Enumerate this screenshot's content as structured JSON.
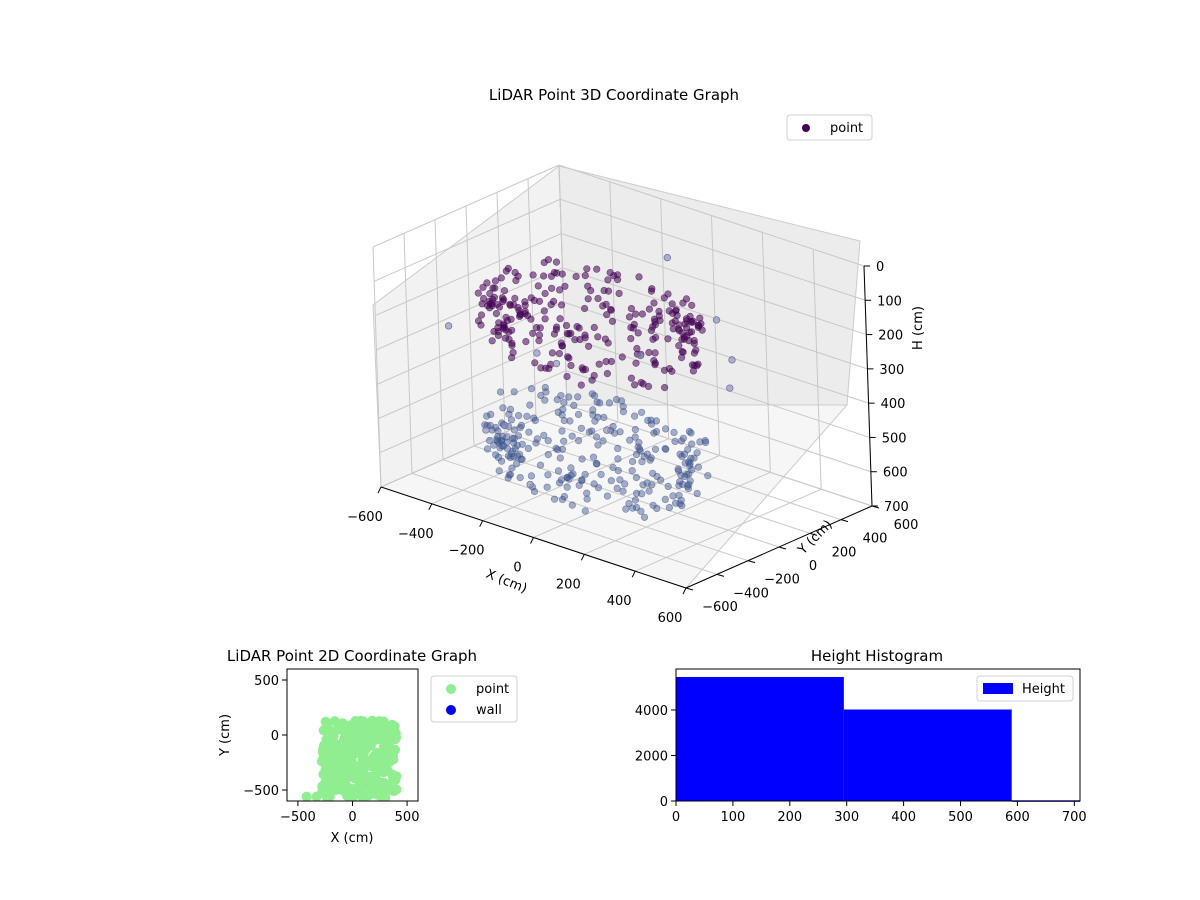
{
  "colors": {
    "point_3d": "#440154",
    "point_3d_low": "#3b528b",
    "point_2d": "#90ee90",
    "wall_2d": "#0000ee",
    "hist_bar": "#0000ff"
  },
  "chart_data": [
    {
      "type": "scatter3d",
      "title": "LiDAR Point 3D Coordinate Graph",
      "xlabel": "X (cm)",
      "ylabel": "Y (cm)",
      "zlabel": "H (cm)",
      "xlim": [
        -600,
        600
      ],
      "ylim": [
        -600,
        600
      ],
      "zlim": [
        0,
        700
      ],
      "z_inverted": true,
      "x_ticks": [
        -600,
        -400,
        -200,
        0,
        200,
        400,
        600
      ],
      "x_tick_labels": [
        "−600",
        "−400",
        "−200",
        "0",
        "200",
        "400",
        "600"
      ],
      "y_ticks": [
        -600,
        -400,
        -200,
        0,
        200,
        400,
        600
      ],
      "y_tick_labels": [
        "−600",
        "−400",
        "−200",
        "0",
        "200",
        "400",
        "600"
      ],
      "z_ticks": [
        0,
        100,
        200,
        300,
        400,
        500,
        600,
        700
      ],
      "z_tick_labels": [
        "0",
        "100",
        "200",
        "300",
        "400",
        "500",
        "600",
        "700"
      ],
      "legend": {
        "position": "top-right",
        "entries": [
          "point"
        ]
      },
      "series": [
        {
          "name": "point",
          "ring_upper": {
            "height": 150,
            "x_range": [
              -380,
              420
            ],
            "y_range": [
              -560,
              120
            ]
          },
          "ring_lower": {
            "height": 520,
            "x_range": [
              -380,
              420
            ],
            "y_range": [
              -560,
              120
            ]
          },
          "outliers": [
            [
              -560,
              -200,
              300
            ],
            [
              -600,
              200,
              680
            ],
            [
              -480,
              350,
              500
            ],
            [
              -300,
              -400,
              500
            ],
            [
              -400,
              100,
              400
            ],
            [
              -150,
              550,
              150
            ],
            [
              100,
              450,
              250
            ],
            [
              250,
              300,
              300
            ],
            [
              300,
              200,
              350
            ],
            [
              -100,
              -450,
              600
            ],
            [
              200,
              -200,
              200
            ],
            [
              150,
              -350,
              400
            ]
          ]
        }
      ]
    },
    {
      "type": "scatter",
      "title": "LiDAR Point 2D Coordinate Graph",
      "xlabel": "X (cm)",
      "ylabel": "Y (cm)",
      "xlim": [
        -600,
        600
      ],
      "ylim": [
        -600,
        600
      ],
      "x_ticks": [
        -500,
        0,
        500
      ],
      "x_tick_labels": [
        "−500",
        "0",
        "500"
      ],
      "y_ticks": [
        -500,
        0,
        500
      ],
      "y_tick_labels": [
        "−500",
        "0",
        "500"
      ],
      "legend": {
        "position": "outside-right",
        "entries": [
          "point",
          "wall"
        ]
      },
      "series": [
        {
          "name": "point",
          "shape": "blob",
          "x_range": [
            -420,
            430
          ],
          "y_range": [
            -580,
            130
          ]
        },
        {
          "name": "wall",
          "points": []
        }
      ]
    },
    {
      "type": "bar",
      "title": "Height Histogram",
      "xlim": [
        0,
        710
      ],
      "ylim": [
        0,
        5800
      ],
      "x_ticks": [
        0,
        100,
        200,
        300,
        400,
        500,
        600,
        700
      ],
      "y_ticks": [
        0,
        2000,
        4000
      ],
      "legend": {
        "position": "top-right",
        "entries": [
          "Height"
        ]
      },
      "series": [
        {
          "name": "Height",
          "bins": [
            {
              "start": 0,
              "end": 295,
              "count": 5450
            },
            {
              "start": 295,
              "end": 590,
              "count": 4020
            },
            {
              "start": 590,
              "end": 710,
              "count": 30
            }
          ]
        }
      ]
    }
  ]
}
